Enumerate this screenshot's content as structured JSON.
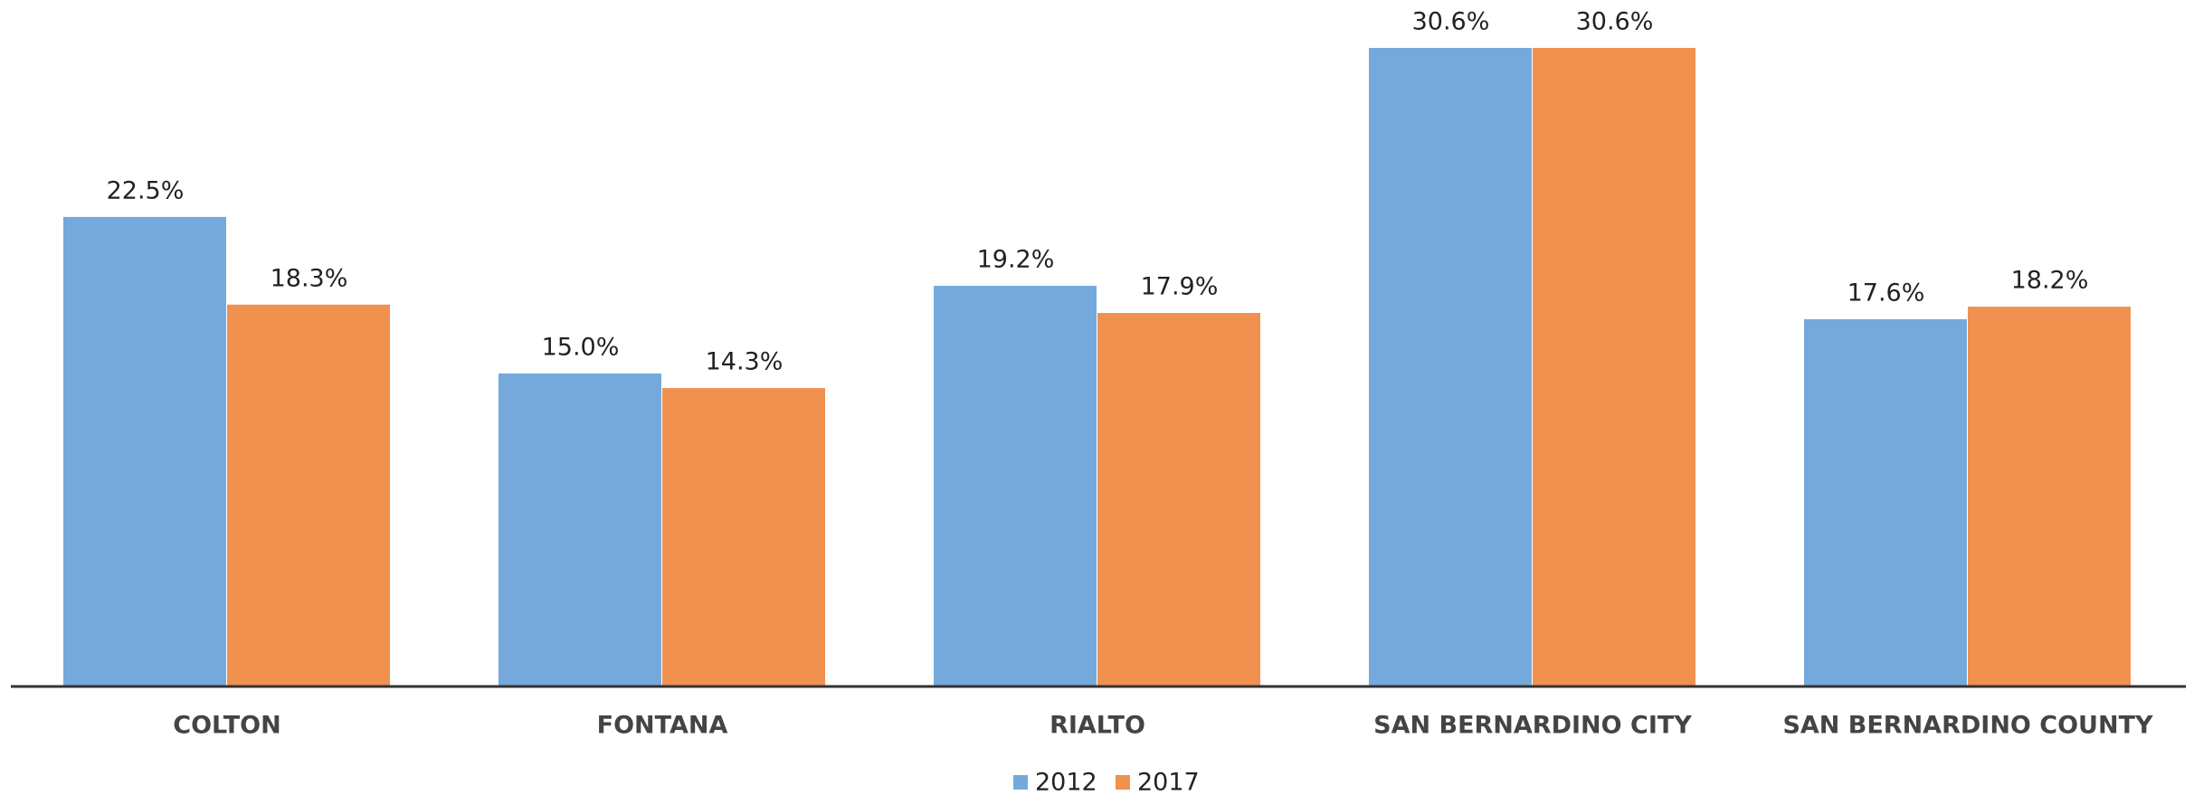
{
  "chart_data": {
    "type": "bar",
    "categories": [
      "COLTON",
      "FONTANA",
      "RIALTO",
      "SAN BERNARDINO CITY",
      "SAN BERNARDINO COUNTY"
    ],
    "series": [
      {
        "name": "2012",
        "color": "#75a9db",
        "values": [
          22.5,
          15.0,
          19.2,
          30.6,
          17.6
        ],
        "value_labels": [
          "22.5%",
          "15.0%",
          "19.2%",
          "30.6%",
          "17.6%"
        ]
      },
      {
        "name": "2017",
        "color": "#f09150",
        "values": [
          18.3,
          14.3,
          17.9,
          30.6,
          18.2
        ],
        "value_labels": [
          "18.3%",
          "14.3%",
          "17.9%",
          "30.6%",
          "18.2%"
        ]
      }
    ],
    "legend": "bottom"
  }
}
